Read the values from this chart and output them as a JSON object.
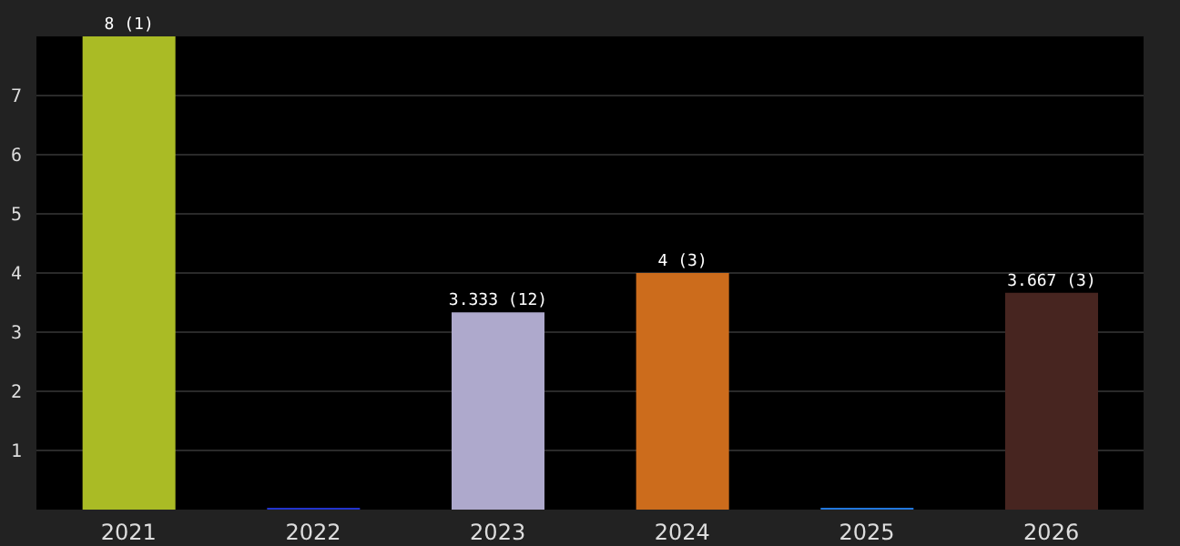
{
  "chart_data": {
    "type": "bar",
    "categories": [
      "2021",
      "2022",
      "2023",
      "2024",
      "2025",
      "2026"
    ],
    "values": [
      8,
      0,
      3.333,
      4,
      0,
      3.667
    ],
    "colors": [
      "#aabb25",
      "#2233cc",
      "#aea9cc",
      "#cc6c1c",
      "#2277dd",
      "#472520"
    ],
    "value_labels": [
      "8 (1)",
      null,
      "3.333 (12)",
      "4 (3)",
      null,
      "3.667 (3)"
    ],
    "ylim": [
      0,
      8
    ],
    "yticks": [
      1,
      2,
      3,
      4,
      5,
      6,
      7
    ],
    "grid": "y"
  }
}
